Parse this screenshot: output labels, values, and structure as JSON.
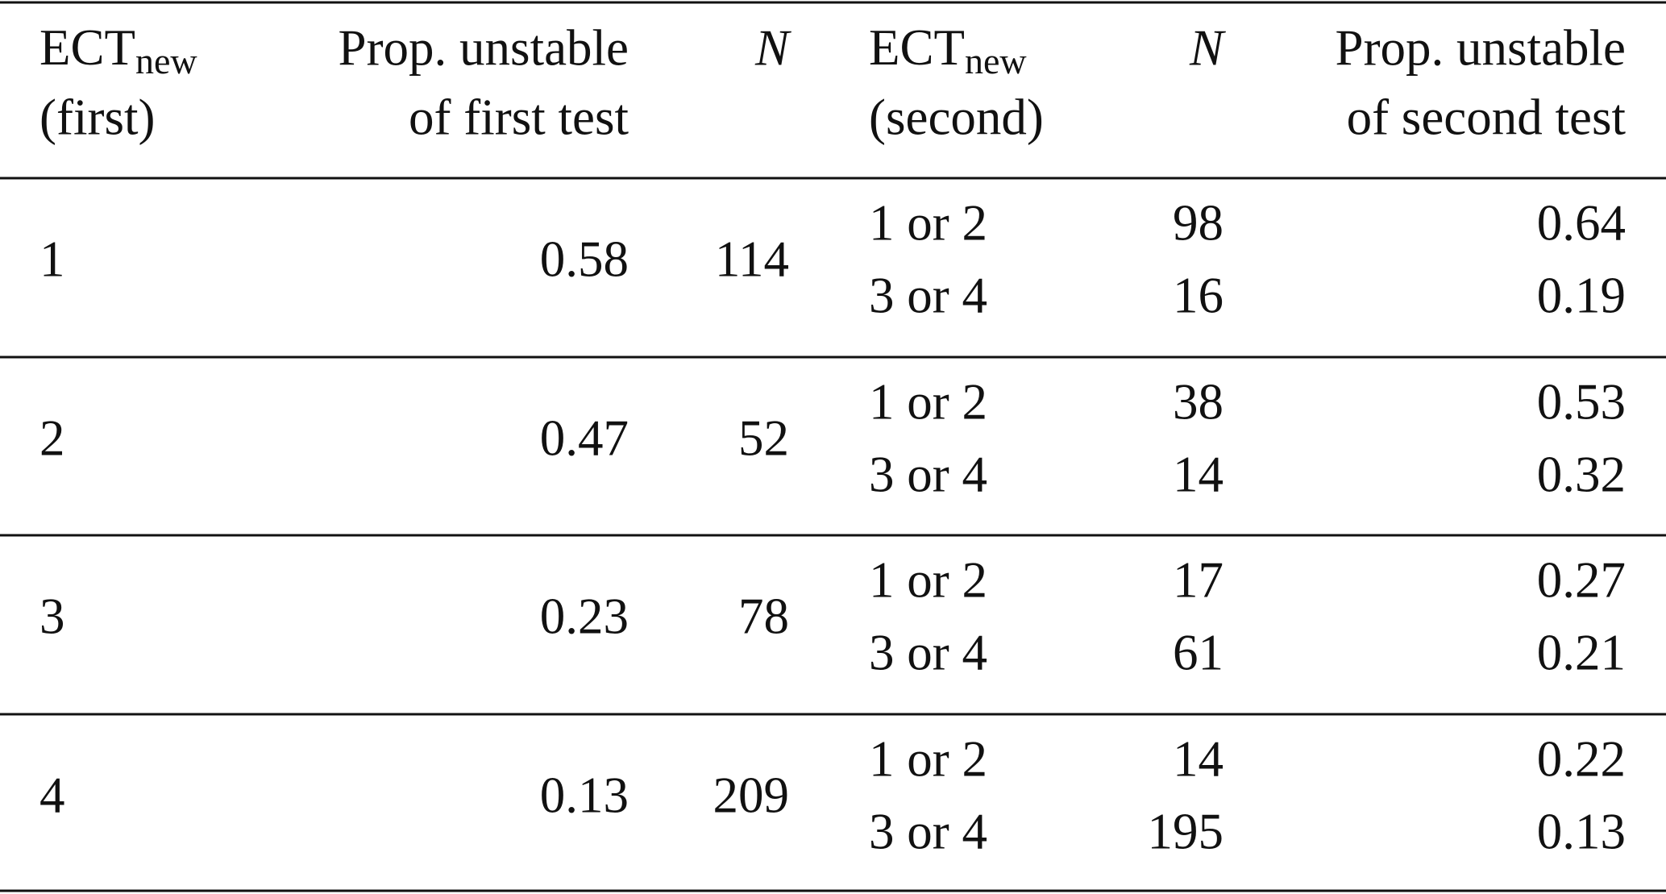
{
  "table": {
    "header": [
      {
        "main": "ECT",
        "sub": "new",
        "line2": "(first)"
      },
      {
        "line1": "Prop. unstable",
        "line2": "of first test"
      },
      {
        "line1": "N"
      },
      {
        "main": "ECT",
        "sub": "new",
        "line2": "(second)"
      },
      {
        "line1": "N"
      },
      {
        "line1": "Prop. unstable",
        "line2": "of second test"
      }
    ],
    "groups": [
      {
        "ect": 1,
        "prop": 0.58,
        "n": 114,
        "rows": [
          {
            "ect": "1 or 2",
            "n": 98,
            "prop": 0.64
          },
          {
            "ect": "3 or 4",
            "n": 16,
            "prop": 0.19
          }
        ]
      },
      {
        "ect": 2,
        "prop": 0.47,
        "n": 52,
        "rows": [
          {
            "ect": "1 or 2",
            "n": 38,
            "prop": 0.53
          },
          {
            "ect": "3 or 4",
            "n": 14,
            "prop": 0.32
          }
        ]
      },
      {
        "ect": 3,
        "prop": 0.23,
        "n": 78,
        "rows": [
          {
            "ect": "1 or 2",
            "n": 17,
            "prop": 0.27
          },
          {
            "ect": "3 or 4",
            "n": 61,
            "prop": 0.21
          }
        ]
      },
      {
        "ect": 4,
        "prop": 0.13,
        "n": 209,
        "rows": [
          {
            "ect": "1 or 2",
            "n": 14,
            "prop": 0.22
          },
          {
            "ect": "3 or 4",
            "n": 195,
            "prop": 0.13
          }
        ]
      }
    ]
  }
}
